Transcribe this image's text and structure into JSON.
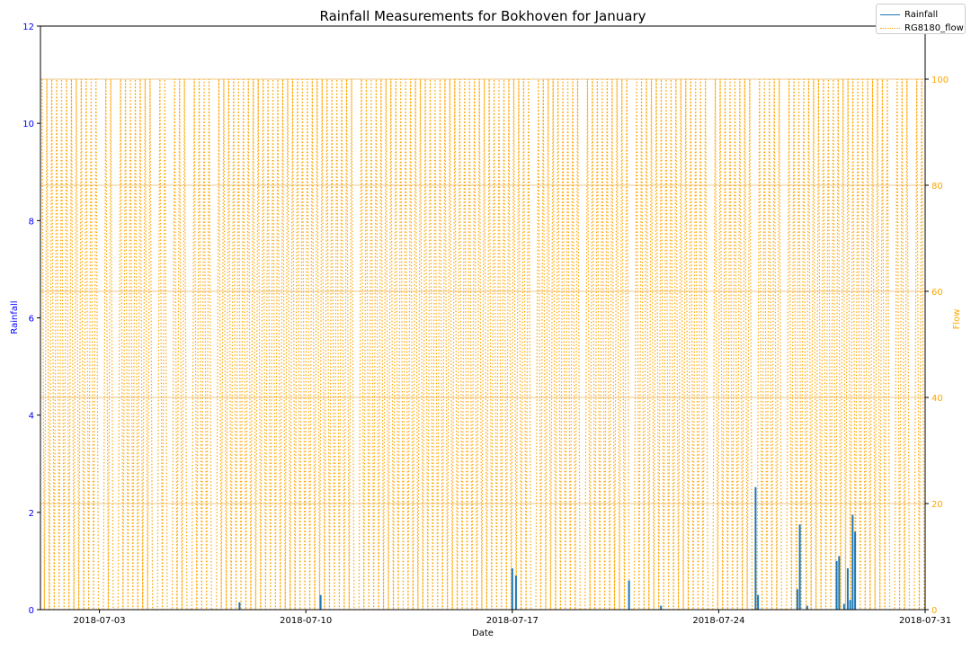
{
  "chart_data": {
    "type": "bar",
    "title": "Rainfall Measurements for Bokhoven for January",
    "xlabel": "Date",
    "ylabel": "Rainfall",
    "y2label": "Flow",
    "xlim": [
      "2018-07-01",
      "2018-07-31"
    ],
    "ylim": [
      0,
      12
    ],
    "y2lim": [
      0,
      110
    ],
    "x_ticks": [
      "2018-07-03",
      "2018-07-10",
      "2018-07-17",
      "2018-07-24",
      "2018-07-31"
    ],
    "y_ticks": [
      "0",
      "2",
      "4",
      "6",
      "8",
      "10",
      "12"
    ],
    "y2_ticks": [
      "0",
      "20",
      "40",
      "60",
      "80",
      "100"
    ],
    "grid": "right axis horizontal lines",
    "legend_position": "top-right",
    "series": [
      {
        "name": "Rainfall",
        "axis": "left",
        "color": "#1f77b4",
        "style": "solid",
        "points": [
          {
            "date": "2018-07-07 18:00",
            "value": 0.15
          },
          {
            "date": "2018-07-10 12:00",
            "value": 0.3
          },
          {
            "date": "2018-07-17 00:00",
            "value": 0.85
          },
          {
            "date": "2018-07-17 03:00",
            "value": 0.7
          },
          {
            "date": "2018-07-20 23:00",
            "value": 0.6
          },
          {
            "date": "2018-07-22 01:00",
            "value": 0.08
          },
          {
            "date": "2018-07-25 06:00",
            "value": 2.52
          },
          {
            "date": "2018-07-25 08:00",
            "value": 0.3
          },
          {
            "date": "2018-07-26 16:00",
            "value": 0.42
          },
          {
            "date": "2018-07-26 18:00",
            "value": 1.75
          },
          {
            "date": "2018-07-27 00:00",
            "value": 0.08
          },
          {
            "date": "2018-07-28 00:00",
            "value": 1.0
          },
          {
            "date": "2018-07-28 02:00",
            "value": 1.1
          },
          {
            "date": "2018-07-28 06:00",
            "value": 0.12
          },
          {
            "date": "2018-07-28 09:00",
            "value": 0.85
          },
          {
            "date": "2018-07-28 11:00",
            "value": 0.2
          },
          {
            "date": "2018-07-28 13:00",
            "value": 1.95
          },
          {
            "date": "2018-07-28 15:00",
            "value": 1.6
          }
        ]
      },
      {
        "name": "RG8180_flow",
        "axis": "right",
        "color": "#ffa500",
        "style": "dotted",
        "on_value": 100,
        "off_value": 0,
        "description_values": "Flow alternates rapidly between 0 and 100 throughout the month",
        "gaps_days": [
          [
            1.75,
            1.85
          ],
          [
            2.05,
            2.2
          ],
          [
            2.55,
            2.7
          ],
          [
            3.25,
            3.35
          ],
          [
            3.85,
            3.95
          ],
          [
            4.35,
            4.45
          ],
          [
            5.05,
            5.2
          ],
          [
            5.85,
            5.95
          ],
          [
            6.75,
            6.85
          ],
          [
            7.45,
            7.55
          ],
          [
            8.25,
            8.35
          ],
          [
            9.45,
            9.55
          ],
          [
            10.65,
            10.75
          ],
          [
            12.25,
            12.35
          ],
          [
            13.25,
            13.35
          ],
          [
            14.25,
            14.35
          ],
          [
            15.75,
            15.85
          ],
          [
            16.65,
            16.75
          ],
          [
            18.3,
            18.4
          ],
          [
            19.25,
            19.35
          ],
          [
            20.05,
            20.15
          ],
          [
            21.75,
            21.85
          ],
          [
            22.65,
            22.75
          ],
          [
            24.2,
            24.3
          ],
          [
            25.15,
            25.25
          ],
          [
            26.25,
            26.35
          ],
          [
            27.25,
            27.35
          ],
          [
            28.8,
            28.9
          ],
          [
            29.55,
            29.65
          ]
        ]
      }
    ]
  },
  "colors": {
    "left_axis": "#0000ff",
    "right_axis": "#ffa500",
    "grid": "#e6b86a"
  }
}
